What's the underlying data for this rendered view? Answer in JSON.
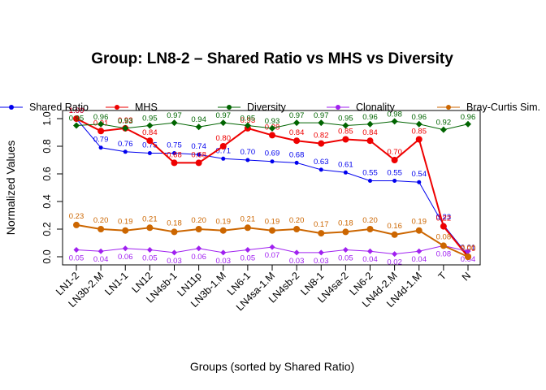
{
  "chart_data": {
    "type": "line",
    "title": "Group: LN8-2 – Shared Ratio vs MHS vs Diversity",
    "xlabel": "Groups (sorted by Shared Ratio)",
    "ylabel": "Normalized Values",
    "ylim": [
      0,
      1
    ],
    "yticks": [
      "0.0",
      "0.2",
      "0.4",
      "0.6",
      "0.8",
      "1.0"
    ],
    "grid": false,
    "legend_position": "top",
    "categories": [
      "LN1-2",
      "LN3b-2.M",
      "LN1-1",
      "LN12",
      "LN4sb-1",
      "LN11p",
      "LN3b-1.M",
      "LN6-1",
      "LN4sa-1.M",
      "LN4sb-2",
      "LN8-1",
      "LN4sa-2",
      "LN6-2",
      "LN4d-2.M",
      "LN4d-1.M",
      "T",
      "N"
    ],
    "series": [
      {
        "name": "Shared Ratio",
        "color": "#0000ee",
        "values": [
          1.0,
          0.79,
          0.76,
          0.75,
          0.75,
          0.74,
          0.71,
          0.7,
          0.69,
          0.68,
          0.63,
          0.61,
          0.55,
          0.55,
          0.54,
          0.23,
          0.01
        ],
        "labels": [
          "1.00",
          "0.79",
          "0.76",
          "0.75",
          "0.75",
          "0.74",
          "0.71",
          "0.70",
          "0.69",
          "0.68",
          "0.63",
          "0.61",
          "0.55",
          "0.55",
          "0.54",
          "0.23",
          "0.01"
        ]
      },
      {
        "name": "MHS",
        "color": "#ee0000",
        "values": [
          1.0,
          0.91,
          0.93,
          0.84,
          0.68,
          0.68,
          0.8,
          0.93,
          0.88,
          0.84,
          0.82,
          0.85,
          0.84,
          0.7,
          0.85,
          0.22,
          0.0
        ],
        "labels": [
          "1.00",
          "0.91",
          "0.93",
          "0.84",
          "0.68",
          "0.68",
          "0.80",
          "0.93",
          "0.88",
          "0.84",
          "0.82",
          "0.85",
          "0.84",
          "0.70",
          "0.85",
          "0.22",
          "0.00"
        ]
      },
      {
        "name": "Diversity",
        "color": "#006400",
        "values": [
          0.95,
          0.96,
          0.93,
          0.95,
          0.97,
          0.94,
          0.97,
          0.95,
          0.93,
          0.97,
          0.97,
          0.95,
          0.96,
          0.98,
          0.96,
          0.92,
          0.96
        ],
        "labels": [
          "0.95",
          "0.96",
          "0.93",
          "0.95",
          "0.97",
          "0.94",
          "0.97",
          "0.95",
          "0.93",
          "0.97",
          "0.97",
          "0.95",
          "0.96",
          "0.98",
          "0.96",
          "0.92",
          "0.96"
        ]
      },
      {
        "name": "Clonality",
        "color": "#a020f0",
        "values": [
          0.05,
          0.04,
          0.06,
          0.05,
          0.03,
          0.06,
          0.03,
          0.05,
          0.07,
          0.03,
          0.03,
          0.05,
          0.04,
          0.02,
          0.04,
          0.08,
          0.04
        ],
        "labels": [
          "0.05",
          "0.04",
          "0.06",
          "0.05",
          "0.03",
          "0.06",
          "0.03",
          "0.05",
          "0.07",
          "0.03",
          "0.03",
          "0.05",
          "0.04",
          "0.02",
          "0.04",
          "0.08",
          "0.04"
        ]
      },
      {
        "name": "Bray-Curtis Sim.",
        "color": "#cc6600",
        "values": [
          0.23,
          0.2,
          0.19,
          0.21,
          0.18,
          0.2,
          0.19,
          0.21,
          0.19,
          0.2,
          0.17,
          0.18,
          0.2,
          0.16,
          0.19,
          0.08,
          0.0
        ],
        "labels": [
          "0.23",
          "0.20",
          "0.19",
          "0.21",
          "0.18",
          "0.20",
          "0.19",
          "0.21",
          "0.19",
          "0.20",
          "0.17",
          "0.18",
          "0.20",
          "0.16",
          "0.19",
          "0.08",
          "0.00"
        ]
      }
    ]
  }
}
